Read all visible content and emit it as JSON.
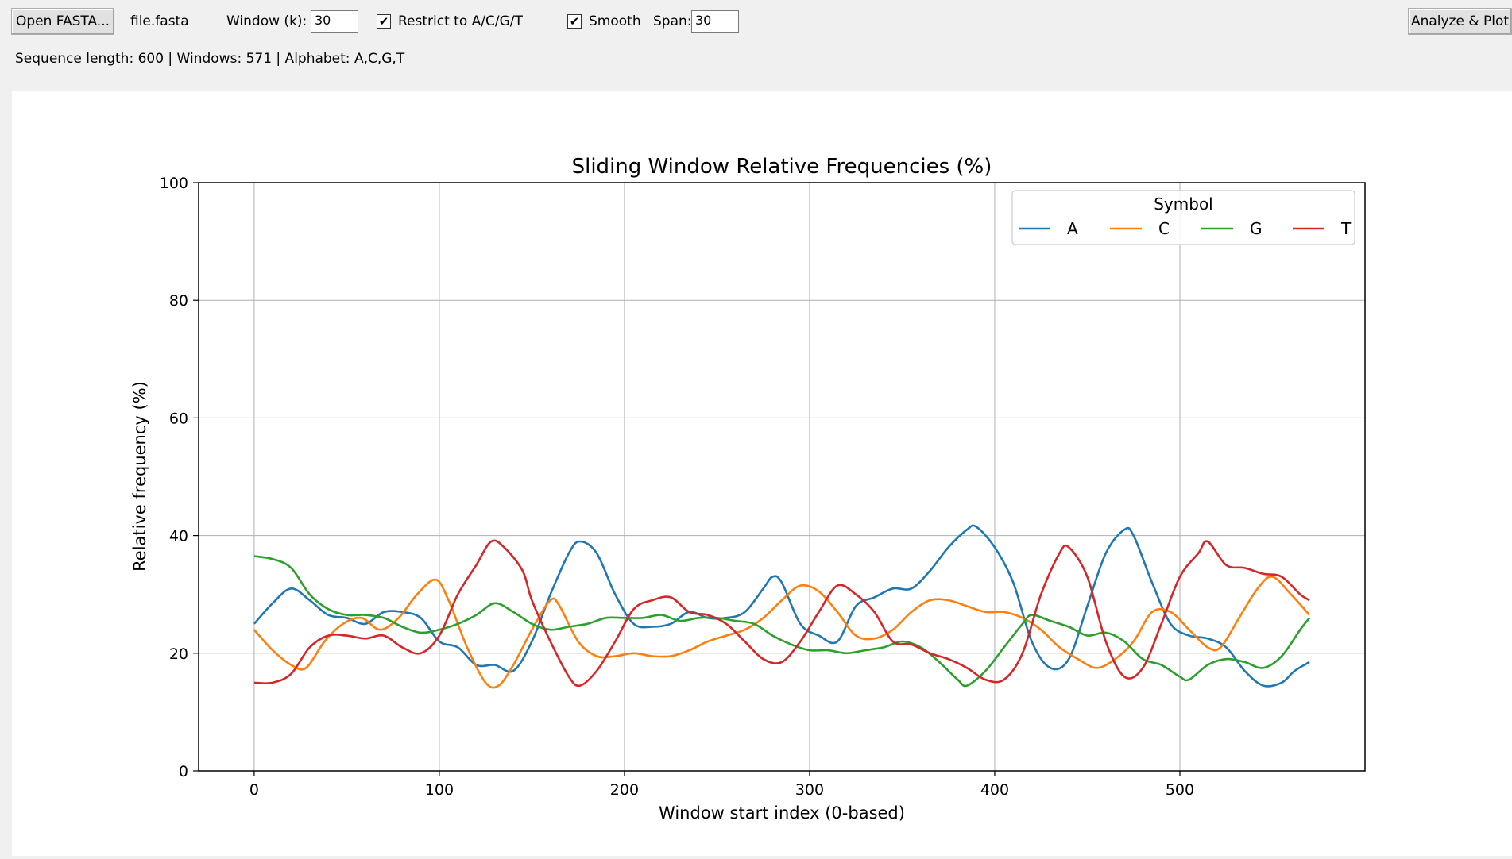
{
  "toolbar": {
    "open_label": "Open FASTA...",
    "file_name": "file.fasta",
    "window_label": "Window (k):",
    "window_value": "30",
    "restrict_label": "Restrict to A/C/G/T",
    "restrict_checked": true,
    "smooth_label": "Smooth",
    "smooth_checked": true,
    "span_label": "Span:",
    "span_value": "30",
    "analyze_label": "Analyze & Plot",
    "check_glyph": "✔"
  },
  "status": {
    "text": "Sequence length: 600  |  Windows: 571  |  Alphabet: A,C,G,T"
  },
  "chart_data": {
    "type": "line",
    "title": "Sliding Window Relative Frequencies (%)",
    "xlabel": "Window start index (0-based)",
    "ylabel": "Relative frequency (%)",
    "xlim": [
      -30,
      600
    ],
    "ylim": [
      0,
      100
    ],
    "xticks": [
      0,
      100,
      200,
      300,
      400,
      500
    ],
    "yticks": [
      0,
      20,
      40,
      60,
      80,
      100
    ],
    "grid": true,
    "legend": {
      "title": "Symbol",
      "placement": "top-right",
      "columns": 4
    },
    "series": [
      {
        "name": "A",
        "color": "#1f77b4",
        "points": [
          [
            0,
            25
          ],
          [
            10,
            28.5
          ],
          [
            20,
            31
          ],
          [
            30,
            29
          ],
          [
            40,
            26.5
          ],
          [
            50,
            26
          ],
          [
            60,
            25
          ],
          [
            70,
            27
          ],
          [
            80,
            27
          ],
          [
            90,
            26
          ],
          [
            100,
            22
          ],
          [
            110,
            21
          ],
          [
            120,
            18
          ],
          [
            130,
            18
          ],
          [
            140,
            17
          ],
          [
            150,
            22
          ],
          [
            160,
            30
          ],
          [
            170,
            37
          ],
          [
            176,
            39
          ],
          [
            185,
            37
          ],
          [
            195,
            30
          ],
          [
            205,
            25
          ],
          [
            215,
            24.5
          ],
          [
            225,
            25
          ],
          [
            235,
            27
          ],
          [
            245,
            26
          ],
          [
            255,
            26
          ],
          [
            265,
            27
          ],
          [
            275,
            31
          ],
          [
            280,
            33
          ],
          [
            285,
            32
          ],
          [
            295,
            25
          ],
          [
            305,
            23
          ],
          [
            315,
            22
          ],
          [
            325,
            28
          ],
          [
            335,
            29.5
          ],
          [
            345,
            31
          ],
          [
            355,
            31
          ],
          [
            365,
            34
          ],
          [
            375,
            38
          ],
          [
            385,
            41
          ],
          [
            390,
            41.5
          ],
          [
            400,
            38
          ],
          [
            410,
            32
          ],
          [
            420,
            22
          ],
          [
            430,
            17.5
          ],
          [
            440,
            19
          ],
          [
            450,
            28
          ],
          [
            460,
            37
          ],
          [
            470,
            41
          ],
          [
            475,
            40
          ],
          [
            485,
            32
          ],
          [
            495,
            25
          ],
          [
            505,
            23
          ],
          [
            515,
            22.5
          ],
          [
            525,
            21
          ],
          [
            535,
            17
          ],
          [
            545,
            14.5
          ],
          [
            555,
            15
          ],
          [
            562,
            17
          ],
          [
            570,
            18.5
          ]
        ]
      },
      {
        "name": "C",
        "color": "#ff7f0e",
        "points": [
          [
            0,
            24
          ],
          [
            10,
            20.5
          ],
          [
            20,
            18
          ],
          [
            28,
            17.5
          ],
          [
            38,
            22
          ],
          [
            48,
            25
          ],
          [
            58,
            26
          ],
          [
            68,
            24
          ],
          [
            78,
            26
          ],
          [
            88,
            30
          ],
          [
            98,
            32.5
          ],
          [
            105,
            29
          ],
          [
            115,
            21
          ],
          [
            125,
            15
          ],
          [
            132,
            14.5
          ],
          [
            140,
            18
          ],
          [
            150,
            24
          ],
          [
            160,
            29
          ],
          [
            165,
            28
          ],
          [
            175,
            22
          ],
          [
            185,
            19.5
          ],
          [
            195,
            19.5
          ],
          [
            205,
            20
          ],
          [
            215,
            19.5
          ],
          [
            225,
            19.5
          ],
          [
            235,
            20.5
          ],
          [
            245,
            22
          ],
          [
            255,
            23
          ],
          [
            265,
            24
          ],
          [
            275,
            26
          ],
          [
            285,
            29
          ],
          [
            295,
            31.5
          ],
          [
            305,
            30.5
          ],
          [
            315,
            27
          ],
          [
            325,
            23
          ],
          [
            335,
            22.5
          ],
          [
            345,
            24
          ],
          [
            355,
            27
          ],
          [
            365,
            29
          ],
          [
            375,
            29
          ],
          [
            385,
            28
          ],
          [
            395,
            27
          ],
          [
            405,
            27
          ],
          [
            415,
            26
          ],
          [
            425,
            24
          ],
          [
            435,
            21
          ],
          [
            445,
            19
          ],
          [
            455,
            17.5
          ],
          [
            465,
            19
          ],
          [
            475,
            22
          ],
          [
            485,
            27
          ],
          [
            495,
            27
          ],
          [
            505,
            24
          ],
          [
            515,
            21
          ],
          [
            522,
            21
          ],
          [
            532,
            26
          ],
          [
            542,
            31
          ],
          [
            550,
            33
          ],
          [
            560,
            30
          ],
          [
            570,
            26.5
          ]
        ]
      },
      {
        "name": "G",
        "color": "#2ca02c",
        "points": [
          [
            0,
            36.5
          ],
          [
            10,
            36
          ],
          [
            20,
            34.5
          ],
          [
            30,
            30
          ],
          [
            40,
            27.5
          ],
          [
            50,
            26.5
          ],
          [
            60,
            26.5
          ],
          [
            70,
            26
          ],
          [
            80,
            24.5
          ],
          [
            90,
            23.5
          ],
          [
            100,
            24
          ],
          [
            110,
            25
          ],
          [
            120,
            26.5
          ],
          [
            130,
            28.5
          ],
          [
            140,
            27
          ],
          [
            150,
            25
          ],
          [
            160,
            24
          ],
          [
            170,
            24.5
          ],
          [
            180,
            25
          ],
          [
            190,
            26
          ],
          [
            200,
            26
          ],
          [
            210,
            26
          ],
          [
            220,
            26.5
          ],
          [
            230,
            25.5
          ],
          [
            240,
            26
          ],
          [
            250,
            26
          ],
          [
            260,
            25.5
          ],
          [
            270,
            25
          ],
          [
            280,
            23
          ],
          [
            290,
            21.5
          ],
          [
            300,
            20.5
          ],
          [
            310,
            20.5
          ],
          [
            320,
            20
          ],
          [
            330,
            20.5
          ],
          [
            340,
            21
          ],
          [
            350,
            22
          ],
          [
            360,
            21
          ],
          [
            370,
            18.5
          ],
          [
            380,
            15.5
          ],
          [
            385,
            14.5
          ],
          [
            395,
            17
          ],
          [
            405,
            21
          ],
          [
            415,
            25
          ],
          [
            420,
            26.5
          ],
          [
            430,
            25.5
          ],
          [
            440,
            24.5
          ],
          [
            450,
            23
          ],
          [
            460,
            23.5
          ],
          [
            470,
            22
          ],
          [
            480,
            19
          ],
          [
            490,
            18
          ],
          [
            500,
            16
          ],
          [
            505,
            15.5
          ],
          [
            515,
            18
          ],
          [
            525,
            19
          ],
          [
            535,
            18.5
          ],
          [
            545,
            17.5
          ],
          [
            555,
            19.5
          ],
          [
            565,
            24
          ],
          [
            570,
            26
          ]
        ]
      },
      {
        "name": "T",
        "color": "#d62728",
        "points": [
          [
            0,
            15
          ],
          [
            10,
            15
          ],
          [
            20,
            16.5
          ],
          [
            30,
            21
          ],
          [
            40,
            23
          ],
          [
            50,
            23
          ],
          [
            60,
            22.5
          ],
          [
            70,
            23
          ],
          [
            80,
            21
          ],
          [
            90,
            20
          ],
          [
            100,
            23
          ],
          [
            110,
            30
          ],
          [
            120,
            35
          ],
          [
            128,
            39
          ],
          [
            135,
            38
          ],
          [
            145,
            34
          ],
          [
            150,
            29
          ],
          [
            160,
            22
          ],
          [
            170,
            16
          ],
          [
            176,
            14.5
          ],
          [
            185,
            17
          ],
          [
            195,
            22
          ],
          [
            205,
            27.5
          ],
          [
            215,
            29
          ],
          [
            225,
            29.5
          ],
          [
            235,
            27
          ],
          [
            245,
            26.5
          ],
          [
            255,
            25
          ],
          [
            265,
            22
          ],
          [
            275,
            19
          ],
          [
            285,
            18.5
          ],
          [
            295,
            22
          ],
          [
            305,
            27
          ],
          [
            315,
            31.5
          ],
          [
            325,
            30
          ],
          [
            335,
            27
          ],
          [
            345,
            22
          ],
          [
            355,
            21.5
          ],
          [
            365,
            20
          ],
          [
            375,
            19
          ],
          [
            385,
            17.5
          ],
          [
            395,
            15.5
          ],
          [
            405,
            15.5
          ],
          [
            415,
            20
          ],
          [
            425,
            30
          ],
          [
            435,
            37
          ],
          [
            440,
            38
          ],
          [
            450,
            33
          ],
          [
            460,
            22
          ],
          [
            470,
            16
          ],
          [
            480,
            17.5
          ],
          [
            490,
            25
          ],
          [
            500,
            33
          ],
          [
            510,
            37
          ],
          [
            515,
            39
          ],
          [
            525,
            35
          ],
          [
            535,
            34.5
          ],
          [
            545,
            33.5
          ],
          [
            555,
            33
          ],
          [
            565,
            30
          ],
          [
            570,
            29
          ]
        ]
      }
    ]
  }
}
